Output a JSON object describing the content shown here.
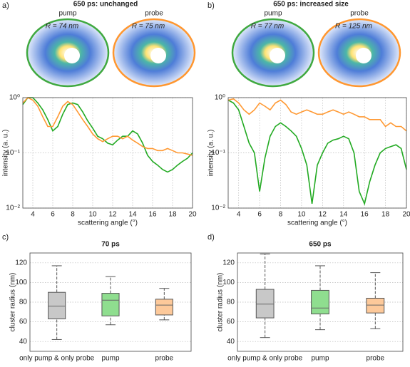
{
  "chart_data": [
    {
      "type": "line",
      "panel": "a)",
      "title": "650 ps: unchanged",
      "images": [
        {
          "label": "pump",
          "annotation": "R = 74 nm",
          "color": "#2ca02c"
        },
        {
          "label": "probe",
          "annotation": "R = 75 nm",
          "color": "#ff8c1a"
        }
      ],
      "x_label": "scattering angle (°)",
      "y_label": "intensity (a. u.)",
      "xlim": [
        3,
        20
      ],
      "xticks": [
        4,
        6,
        8,
        10,
        12,
        14,
        16,
        18,
        20
      ],
      "ylim": [
        0.01,
        1
      ],
      "yticks": [
        {
          "value": 0.01,
          "label": "10⁻²"
        },
        {
          "value": 0.1,
          "label": "10⁻¹"
        },
        {
          "value": 1,
          "label": "10⁰"
        }
      ],
      "log_y": true,
      "grid": true,
      "x": [
        3,
        3.5,
        4,
        4.5,
        5,
        5.5,
        6,
        6.5,
        7,
        7.5,
        8,
        8.5,
        9,
        9.5,
        10,
        10.5,
        11,
        11.5,
        12,
        12.5,
        13,
        13.5,
        14,
        14.5,
        15,
        15.5,
        16,
        16.5,
        17,
        17.5,
        18,
        18.5,
        19,
        19.5,
        20
      ],
      "series": [
        {
          "name": "pump",
          "color": "#22aa22",
          "values": [
            0.75,
            1.0,
            1.0,
            0.8,
            0.6,
            0.4,
            0.25,
            0.3,
            0.5,
            0.75,
            0.8,
            0.75,
            0.55,
            0.38,
            0.28,
            0.2,
            0.18,
            0.15,
            0.14,
            0.17,
            0.2,
            0.2,
            0.25,
            0.22,
            0.15,
            0.09,
            0.07,
            0.06,
            0.05,
            0.045,
            0.05,
            0.06,
            0.07,
            0.08,
            0.1
          ]
        },
        {
          "name": "probe",
          "color": "#ff9933",
          "values": [
            0.8,
            1.0,
            0.9,
            0.7,
            0.45,
            0.3,
            0.3,
            0.45,
            0.7,
            0.85,
            0.75,
            0.55,
            0.4,
            0.3,
            0.22,
            0.18,
            0.16,
            0.18,
            0.2,
            0.2,
            0.18,
            0.2,
            0.17,
            0.15,
            0.13,
            0.12,
            0.12,
            0.11,
            0.11,
            0.12,
            0.11,
            0.1,
            0.1,
            0.095,
            0.09
          ]
        }
      ]
    },
    {
      "type": "line",
      "panel": "b)",
      "title": "650 ps: increased size",
      "images": [
        {
          "label": "pump",
          "annotation": "R = 77 nm",
          "color": "#2ca02c"
        },
        {
          "label": "probe",
          "annotation": "R = 125 nm",
          "color": "#ff8c1a"
        }
      ],
      "x_label": "scattering angle (°)",
      "y_label": "intensity (a. u.)",
      "xlim": [
        3,
        20
      ],
      "xticks": [
        4,
        6,
        8,
        10,
        12,
        14,
        16,
        18,
        20
      ],
      "ylim": [
        0.01,
        1
      ],
      "yticks": [
        {
          "value": 0.01,
          "label": "10⁻²"
        },
        {
          "value": 0.1,
          "label": "10⁻¹"
        },
        {
          "value": 1,
          "label": "10⁰"
        }
      ],
      "log_y": true,
      "grid": true,
      "x": [
        3,
        3.5,
        4,
        4.5,
        5,
        5.5,
        6,
        6.5,
        7,
        7.5,
        8,
        8.5,
        9,
        9.5,
        10,
        10.5,
        11,
        11.5,
        12,
        12.5,
        13,
        13.5,
        14,
        14.5,
        15,
        15.5,
        16,
        16.5,
        17,
        17.5,
        18,
        18.5,
        19,
        19.5,
        20
      ],
      "series": [
        {
          "name": "pump",
          "color": "#22aa22",
          "values": [
            0.9,
            0.8,
            0.6,
            0.3,
            0.15,
            0.1,
            0.02,
            0.08,
            0.2,
            0.3,
            0.35,
            0.3,
            0.25,
            0.2,
            0.12,
            0.06,
            0.012,
            0.06,
            0.1,
            0.15,
            0.17,
            0.18,
            0.2,
            0.18,
            0.1,
            0.02,
            0.012,
            0.03,
            0.06,
            0.1,
            0.12,
            0.13,
            0.14,
            0.12,
            0.05
          ]
        },
        {
          "name": "probe",
          "color": "#ff9933",
          "values": [
            0.9,
            0.95,
            0.8,
            0.6,
            0.5,
            0.6,
            0.8,
            0.7,
            0.6,
            0.8,
            0.9,
            0.75,
            0.55,
            0.5,
            0.55,
            0.6,
            0.55,
            0.5,
            0.5,
            0.55,
            0.6,
            0.55,
            0.5,
            0.55,
            0.5,
            0.45,
            0.45,
            0.4,
            0.4,
            0.4,
            0.3,
            0.35,
            0.3,
            0.3,
            0.25
          ]
        }
      ]
    },
    {
      "type": "box",
      "panel": "c)",
      "title": "70 ps",
      "y_label": "cluster radius (nm)",
      "categories": [
        "only pump & only probe",
        "pump",
        "probe"
      ],
      "colors": [
        "#c8c8c8",
        "#8fde8f",
        "#fdc99a"
      ],
      "ylim": [
        30,
        130
      ],
      "yticks": [
        40,
        60,
        80,
        100,
        120
      ],
      "grid": true,
      "stats": [
        {
          "whislo": 42,
          "q1": 63,
          "med": 76,
          "q3": 90,
          "whishi": 117
        },
        {
          "whislo": 57,
          "q1": 66,
          "med": 82,
          "q3": 89,
          "whishi": 106
        },
        {
          "whislo": 62,
          "q1": 67,
          "med": 77,
          "q3": 83,
          "whishi": 94
        }
      ]
    },
    {
      "type": "box",
      "panel": "d)",
      "title": "650 ps",
      "y_label": "cluster radius (nm)",
      "categories": [
        "only pump & only probe",
        "pump",
        "probe"
      ],
      "colors": [
        "#c8c8c8",
        "#8fde8f",
        "#fdc99a"
      ],
      "ylim": [
        30,
        130
      ],
      "yticks": [
        40,
        60,
        80,
        100,
        120
      ],
      "grid": true,
      "stats": [
        {
          "whislo": 44,
          "q1": 64,
          "med": 78,
          "q3": 93,
          "whishi": 129
        },
        {
          "whislo": 52,
          "q1": 68,
          "med": 74,
          "q3": 92,
          "whishi": 117
        },
        {
          "whislo": 53,
          "q1": 69,
          "med": 77,
          "q3": 84,
          "whishi": 110
        }
      ]
    }
  ]
}
